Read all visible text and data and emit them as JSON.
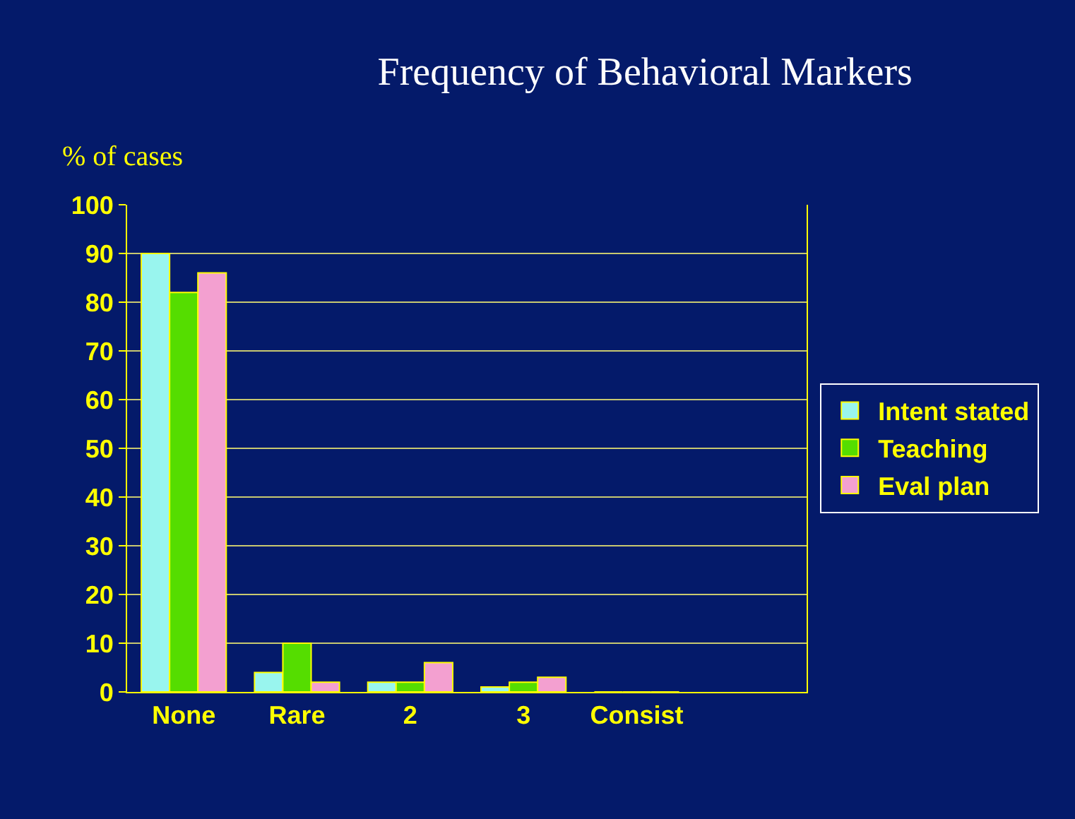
{
  "chart_data": {
    "type": "bar",
    "title": "Frequency of Behavioral Markers",
    "ylabel": "% of cases",
    "categories": [
      "None",
      "Rare",
      "2",
      "3",
      "Consist",
      null
    ],
    "series": [
      {
        "name": "Intent stated",
        "color": "#99f5ee",
        "values": [
          90,
          4,
          2,
          1,
          0,
          null
        ]
      },
      {
        "name": "Teaching",
        "color": "#55dd00",
        "values": [
          82,
          10,
          2,
          2,
          0,
          null
        ]
      },
      {
        "name": "Eval plan",
        "color": "#f3a0d0",
        "values": [
          86,
          2,
          6,
          3,
          0,
          null
        ]
      }
    ],
    "ylim": [
      0,
      100
    ],
    "yticks": [
      0,
      10,
      20,
      30,
      40,
      50,
      60,
      70,
      80,
      90,
      100
    ],
    "grid": "y",
    "legend": "right"
  }
}
